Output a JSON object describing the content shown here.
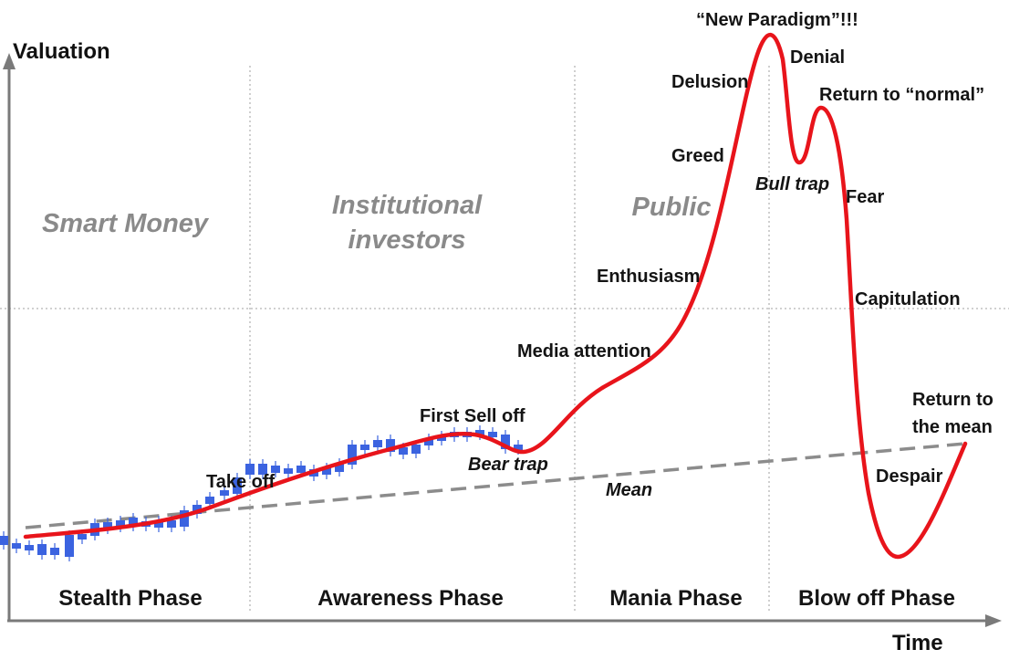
{
  "axes": {
    "y_title": "Valuation",
    "x_title": "Time"
  },
  "participants": {
    "smart_money": "Smart Money",
    "institutional_line1": "Institutional",
    "institutional_line2": "investors",
    "public": "Public"
  },
  "phases": {
    "stealth": "Stealth Phase",
    "awareness": "Awareness Phase",
    "mania": "Mania Phase",
    "blow_off": "Blow off Phase"
  },
  "annotations": {
    "take_off": "Take off",
    "first_sell_off": "First Sell off",
    "bear_trap": "Bear trap",
    "mean": "Mean",
    "media_attention": "Media attention",
    "enthusiasm": "Enthusiasm",
    "greed": "Greed",
    "delusion": "Delusion",
    "new_paradigm": "“New Paradigm”!!!",
    "denial": "Denial",
    "return_normal": "Return to “normal”",
    "bull_trap": "Bull trap",
    "fear": "Fear",
    "capitulation": "Capitulation",
    "return_mean_line1": "Return to",
    "return_mean_line2": "the mean",
    "despair": "Despair"
  },
  "colors": {
    "curve": "#e8141b",
    "mean_line": "#8c8c8c",
    "candles": "#3b63e0",
    "group_labels": "#8a8a8a",
    "axes": "#7a7a7a"
  }
}
